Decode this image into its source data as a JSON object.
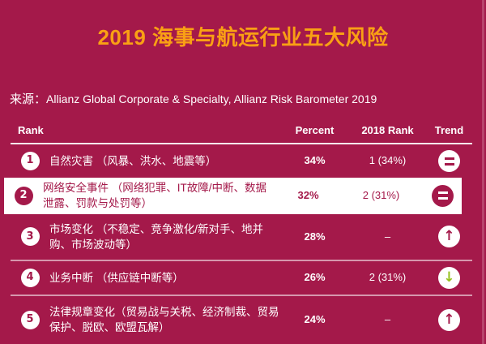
{
  "page": {
    "title": "2019 海事与航运行业五大风险",
    "source_label": "来源：",
    "source_text": "Allianz Global Corporate & Specialty, Allianz Risk Barometer 2019"
  },
  "colors": {
    "background": "#A4194A",
    "title_orange": "#F9A014",
    "text_white": "#FFFFFF",
    "trend_down_green": "#96C11E"
  },
  "table": {
    "headers": {
      "rank": "Rank",
      "percent": "Percent",
      "rank_2018": "2018 Rank",
      "trend": "Trend"
    },
    "trend_glyphs": {
      "up": "↑",
      "down": "↓",
      "equal": "="
    },
    "rows": [
      {
        "rank": "1",
        "risk": "自然灾害 （风暴、洪水、地震等）",
        "percent": "34%",
        "rank_2018": "1 (34%)",
        "trend": "equal",
        "highlighted": false
      },
      {
        "rank": "2",
        "risk": "网络安全事件 （网络犯罪、IT故障/中断、数据泄露、罚款与处罚等）",
        "percent": "32%",
        "rank_2018": "2 (31%)",
        "trend": "equal",
        "highlighted": true
      },
      {
        "rank": "3",
        "risk": "市场变化 （不稳定、竞争激化/新对手、地并购、市场波动等）",
        "percent": "28%",
        "rank_2018": "–",
        "trend": "up",
        "highlighted": false
      },
      {
        "rank": "4",
        "risk": "业务中断 （供应链中断等）",
        "percent": "26%",
        "rank_2018": "2 (31%)",
        "trend": "down",
        "highlighted": false
      },
      {
        "rank": "5",
        "risk": "法律规章变化（贸易战与关税、经济制裁、贸易保护、脱欧、欧盟瓦解）",
        "percent": "24%",
        "rank_2018": "–",
        "trend": "up",
        "highlighted": false
      }
    ]
  }
}
